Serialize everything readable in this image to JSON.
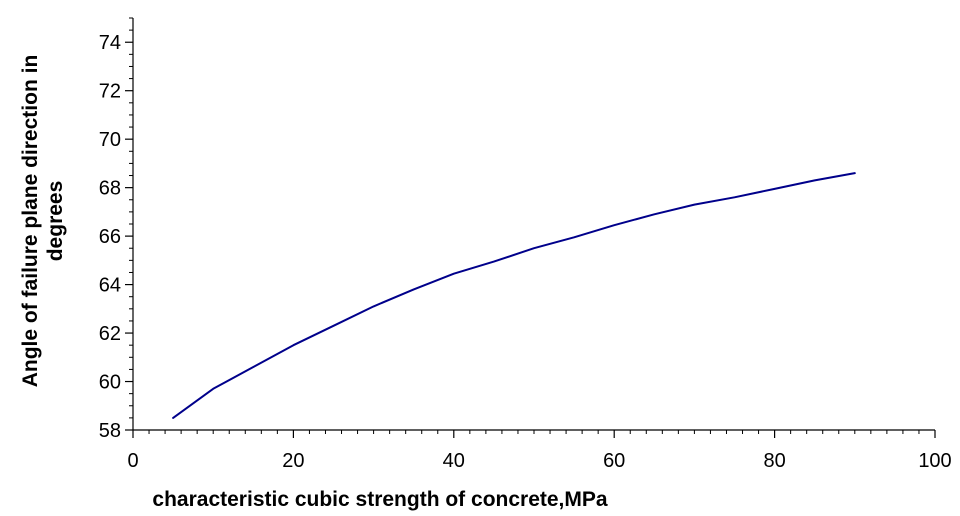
{
  "chart_data": {
    "type": "line",
    "xlabel": "characteristic cubic strength of concrete,MPa",
    "ylabel_lines": [
      "Angle of failure plane direction in",
      "degrees"
    ],
    "xlim": [
      0,
      100
    ],
    "ylim": [
      58,
      75
    ],
    "x_ticks": [
      0,
      20,
      40,
      60,
      80,
      100
    ],
    "y_ticks": [
      58,
      60,
      62,
      64,
      66,
      68,
      70,
      72,
      74
    ],
    "x_minor_step": 2,
    "y_minor_step": 0.5,
    "grid": false,
    "legend": false,
    "series": [
      {
        "color": "#00008B",
        "x": [
          5,
          10,
          15,
          20,
          25,
          30,
          35,
          40,
          45,
          50,
          55,
          60,
          65,
          70,
          75,
          80,
          85,
          90
        ],
        "y": [
          58.5,
          59.7,
          60.6,
          61.5,
          62.3,
          63.1,
          63.8,
          64.45,
          64.95,
          65.5,
          65.95,
          66.45,
          66.9,
          67.3,
          67.6,
          67.95,
          68.3,
          68.6
        ]
      }
    ]
  }
}
